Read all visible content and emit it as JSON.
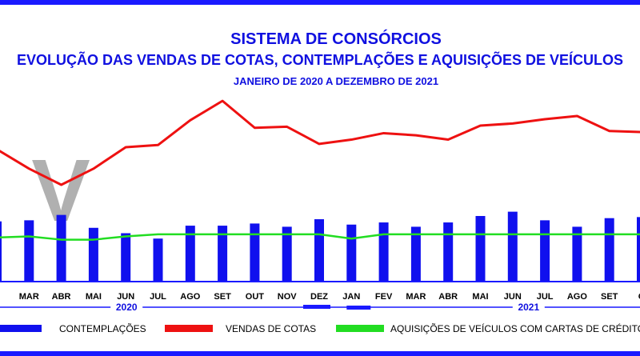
{
  "title": "SISTEMA DE CONSÓRCIOS",
  "subtitle": "EVOLUÇÃO DAS VENDAS DE COTAS, CONTEMPLAÇÕES E AQUISIÇÕES DE VEÍCULOS",
  "period": "JANEIRO DE 2020 A DEZEMBRO DE 2021",
  "colors": {
    "frame": "#1a1aff",
    "contemplacoes": "#1010ee",
    "vendas": "#ee1111",
    "aquisicoes": "#22dd22",
    "axis": "#1a1aff",
    "watermark": "#b0b0b0"
  },
  "watermark_glyph": "V",
  "chart_data": {
    "type": "bar",
    "categories": [
      "FEV",
      "MAR",
      "ABR",
      "MAI",
      "JUN",
      "JUL",
      "AGO",
      "SET",
      "OUT",
      "NOV",
      "DEZ",
      "JAN",
      "FEV",
      "MAR",
      "ABR",
      "MAI",
      "JUN",
      "JUL",
      "AGO",
      "SET",
      "OUT"
    ],
    "visible_tick_labels": [
      "V",
      "MAR",
      "ABR",
      "MAI",
      "JUN",
      "JUL",
      "AGO",
      "SET",
      "OUT",
      "NOV",
      "DEZ",
      "JAN",
      "FEV",
      "MAR",
      "ABR",
      "MAI",
      "JUN",
      "JUL",
      "AGO",
      "SET",
      "O"
    ],
    "years": [
      {
        "label": "2020"
      },
      {
        "label": "2021"
      }
    ],
    "series": [
      {
        "name": "CONTEMPLAÇÕES",
        "kind": "bar",
        "values": [
          56,
          57,
          62,
          50,
          45,
          40,
          52,
          52,
          54,
          51,
          58,
          53,
          55,
          51,
          55,
          61,
          65,
          57,
          51,
          59,
          60
        ]
      },
      {
        "name": "VENDAS DE COTAS",
        "kind": "line",
        "values": [
          123,
          105,
          90,
          105,
          125,
          127,
          150,
          168,
          143,
          144,
          128,
          132,
          138,
          136,
          132,
          145,
          147,
          151,
          154,
          140,
          139
        ]
      },
      {
        "name": "AQUISIÇÕES DE VEÍCULOS COM CARTAS DE CRÉDITO (",
        "kind": "line",
        "values": [
          41,
          42,
          39,
          39,
          42,
          44,
          44,
          44,
          44,
          44,
          44,
          40,
          44,
          44,
          44,
          44,
          44,
          44,
          44,
          44,
          44
        ]
      }
    ],
    "ylim": [
      0,
      180
    ],
    "grid": false,
    "legend_position": "bottom"
  }
}
